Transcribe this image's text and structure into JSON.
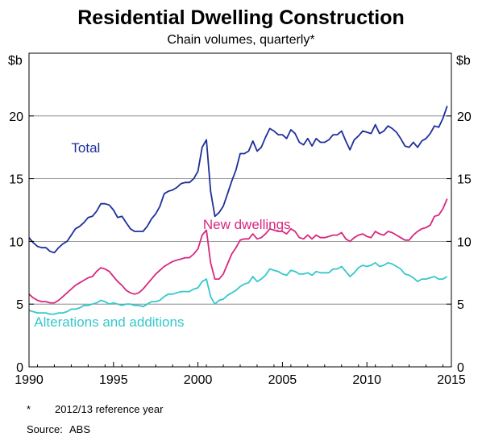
{
  "chart_data": {
    "type": "line",
    "title": "Residential Dwelling Construction",
    "subtitle": "Chain volumes, quarterly*",
    "units_left": "$b",
    "units_right": "$b",
    "xlim": [
      1990,
      2015
    ],
    "ylim": [
      0,
      25
    ],
    "x_ticks": [
      "1990",
      "1995",
      "2000",
      "2005",
      "2010",
      "2015"
    ],
    "y_ticks": [
      "0",
      "5",
      "10",
      "15",
      "20"
    ],
    "grid": true,
    "x_start": 1990.0,
    "x_step": 0.25,
    "series": [
      {
        "name": "Total",
        "color": "#1f2f9a",
        "label_value_x": 1992.5,
        "label_value_y": 17.1,
        "values": [
          10.3,
          9.9,
          9.6,
          9.5,
          9.5,
          9.2,
          9.1,
          9.5,
          9.8,
          10.0,
          10.5,
          11.0,
          11.2,
          11.5,
          11.9,
          12.0,
          12.4,
          13.0,
          13.0,
          12.9,
          12.5,
          11.9,
          12.0,
          11.5,
          11.0,
          10.8,
          10.8,
          10.8,
          11.2,
          11.8,
          12.2,
          12.8,
          13.8,
          14.0,
          14.1,
          14.3,
          14.6,
          14.7,
          14.7,
          15.0,
          15.6,
          17.5,
          18.1,
          14.0,
          12.0,
          12.3,
          12.8,
          13.8,
          14.8,
          15.7,
          17.0,
          17.0,
          17.2,
          18.0,
          17.2,
          17.5,
          18.3,
          19.0,
          18.8,
          18.5,
          18.5,
          18.2,
          18.9,
          18.6,
          17.9,
          17.7,
          18.2,
          17.6,
          18.2,
          17.9,
          17.9,
          18.1,
          18.5,
          18.5,
          18.8,
          18.0,
          17.3,
          18.1,
          18.4,
          18.8,
          18.7,
          18.6,
          19.3,
          18.6,
          18.8,
          19.2,
          19.0,
          18.7,
          18.2,
          17.6,
          17.5,
          17.9,
          17.5,
          18.0,
          18.2,
          18.6,
          19.2,
          19.1,
          19.8,
          20.8
        ]
      },
      {
        "name": "New dwellings",
        "color": "#d6287f",
        "label_value_x": 2000.3,
        "label_value_y": 11.0,
        "values": [
          5.8,
          5.5,
          5.3,
          5.2,
          5.2,
          5.1,
          5.1,
          5.3,
          5.6,
          5.9,
          6.2,
          6.5,
          6.7,
          6.9,
          7.1,
          7.2,
          7.6,
          7.9,
          7.8,
          7.6,
          7.2,
          6.8,
          6.5,
          6.1,
          5.9,
          5.8,
          5.9,
          6.2,
          6.6,
          7.0,
          7.4,
          7.7,
          8.0,
          8.2,
          8.4,
          8.5,
          8.6,
          8.7,
          8.7,
          9.0,
          9.4,
          10.5,
          10.9,
          8.3,
          7.0,
          7.0,
          7.4,
          8.2,
          9.0,
          9.5,
          10.1,
          10.2,
          10.2,
          10.6,
          10.2,
          10.3,
          10.6,
          11.0,
          10.9,
          10.8,
          10.8,
          10.6,
          11.0,
          10.8,
          10.3,
          10.2,
          10.5,
          10.2,
          10.5,
          10.3,
          10.3,
          10.4,
          10.5,
          10.5,
          10.7,
          10.2,
          10.0,
          10.3,
          10.5,
          10.6,
          10.4,
          10.3,
          10.8,
          10.6,
          10.5,
          10.8,
          10.7,
          10.5,
          10.3,
          10.1,
          10.1,
          10.5,
          10.8,
          11.0,
          11.1,
          11.3,
          12.0,
          12.1,
          12.6,
          13.4
        ]
      },
      {
        "name": "Alterations and additions",
        "color": "#35c8cc",
        "label_value_x": 1990.3,
        "label_value_y": 3.2,
        "values": [
          4.5,
          4.4,
          4.3,
          4.3,
          4.3,
          4.2,
          4.2,
          4.3,
          4.3,
          4.4,
          4.6,
          4.6,
          4.7,
          4.9,
          4.9,
          5.0,
          5.1,
          5.3,
          5.2,
          5.0,
          5.1,
          5.0,
          4.9,
          5.0,
          5.0,
          4.9,
          4.9,
          4.8,
          5.0,
          5.2,
          5.2,
          5.3,
          5.6,
          5.8,
          5.8,
          5.9,
          6.0,
          6.0,
          6.0,
          6.2,
          6.3,
          6.8,
          7.0,
          5.6,
          5.0,
          5.3,
          5.4,
          5.7,
          5.9,
          6.1,
          6.4,
          6.6,
          6.7,
          7.2,
          6.8,
          7.0,
          7.3,
          7.8,
          7.7,
          7.6,
          7.4,
          7.3,
          7.7,
          7.6,
          7.4,
          7.4,
          7.5,
          7.3,
          7.6,
          7.5,
          7.5,
          7.5,
          7.8,
          7.8,
          8.0,
          7.6,
          7.2,
          7.5,
          7.9,
          8.1,
          8.0,
          8.1,
          8.3,
          8.0,
          8.1,
          8.3,
          8.2,
          8.0,
          7.8,
          7.4,
          7.3,
          7.1,
          6.8,
          7.0,
          7.0,
          7.1,
          7.2,
          7.0,
          7.0,
          7.2
        ]
      }
    ]
  },
  "footnotes": {
    "note_marker": "*",
    "note_text": "2012/13 reference year",
    "source_label": "Source:",
    "source_text": "ABS"
  }
}
